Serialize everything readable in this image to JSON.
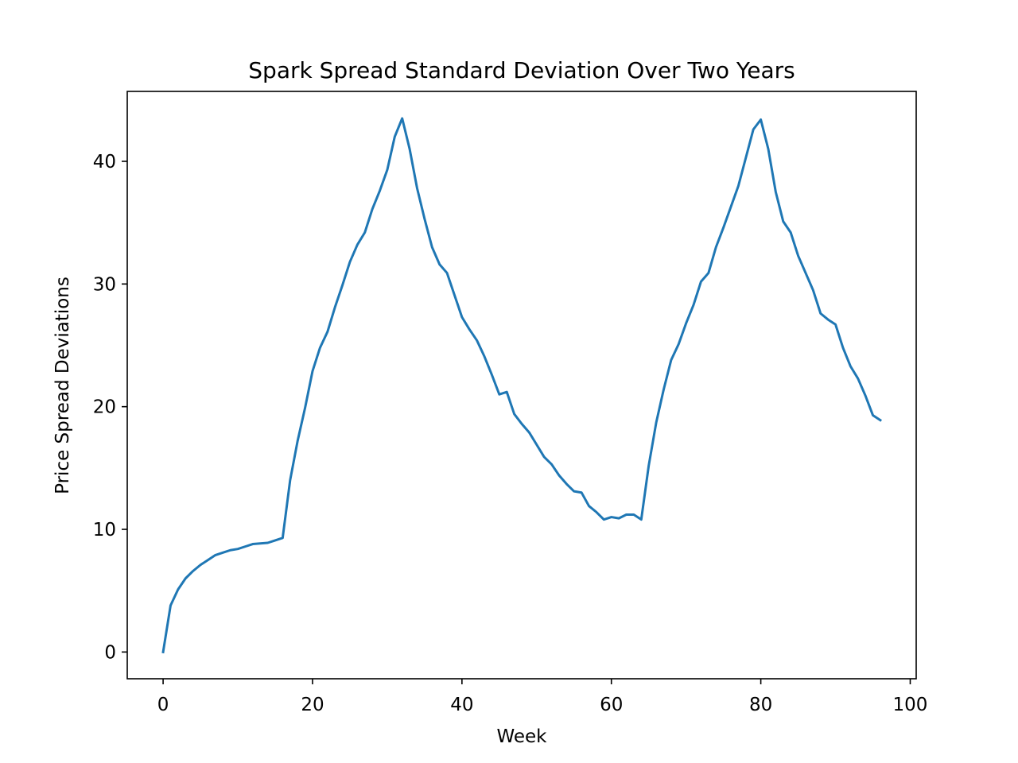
{
  "chart_data": {
    "type": "line",
    "title": "Spark Spread Standard Deviation Over Two Years",
    "xlabel": "Week",
    "ylabel": "Price Spread Deviations",
    "xlim": [
      -4.8,
      100.8
    ],
    "ylim": [
      -2.18,
      45.7
    ],
    "xticks": [
      0,
      20,
      40,
      60,
      80,
      100
    ],
    "yticks": [
      0,
      10,
      20,
      30,
      40
    ],
    "grid": false,
    "legend": "none",
    "line_color": "#1f77b4",
    "x": [
      0,
      1,
      2,
      3,
      4,
      5,
      6,
      7,
      8,
      9,
      10,
      11,
      12,
      13,
      14,
      15,
      16,
      17,
      18,
      19,
      20,
      21,
      22,
      23,
      24,
      25,
      26,
      27,
      28,
      29,
      30,
      31,
      32,
      33,
      34,
      35,
      36,
      37,
      38,
      39,
      40,
      41,
      42,
      43,
      44,
      45,
      46,
      47,
      48,
      49,
      50,
      51,
      52,
      53,
      54,
      55,
      56,
      57,
      58,
      59,
      60,
      61,
      62,
      63,
      64,
      65,
      66,
      67,
      68,
      69,
      70,
      71,
      72,
      73,
      74,
      75,
      76,
      77,
      78,
      79,
      80,
      81,
      82,
      83,
      84,
      85,
      86,
      87,
      88,
      89,
      90,
      91,
      92,
      93,
      94,
      95,
      96
    ],
    "y": [
      0.0,
      3.8,
      5.1,
      6.0,
      6.6,
      7.1,
      7.5,
      7.9,
      8.1,
      8.3,
      8.4,
      8.6,
      8.8,
      8.85,
      8.9,
      9.1,
      9.3,
      14.0,
      17.2,
      19.9,
      22.9,
      24.8,
      26.1,
      28.1,
      29.9,
      31.8,
      33.2,
      34.2,
      36.1,
      37.6,
      39.3,
      42.0,
      43.5,
      41.0,
      37.8,
      35.3,
      33.0,
      31.6,
      30.9,
      29.1,
      27.3,
      26.3,
      25.4,
      24.1,
      22.6,
      21.0,
      21.2,
      19.4,
      18.6,
      17.9,
      16.9,
      15.9,
      15.3,
      14.4,
      13.7,
      13.1,
      13.0,
      11.9,
      11.4,
      10.8,
      11.0,
      10.9,
      11.2,
      11.2,
      10.8,
      15.2,
      18.7,
      21.4,
      23.8,
      25.1,
      26.8,
      28.3,
      30.2,
      30.9,
      33.0,
      34.6,
      36.3,
      38.0,
      40.3,
      42.6,
      43.4,
      41.0,
      37.5,
      35.1,
      34.2,
      32.3,
      30.9,
      29.5,
      27.6,
      27.1,
      26.7,
      24.8,
      23.3,
      22.3,
      20.9,
      19.3,
      18.9
    ]
  }
}
